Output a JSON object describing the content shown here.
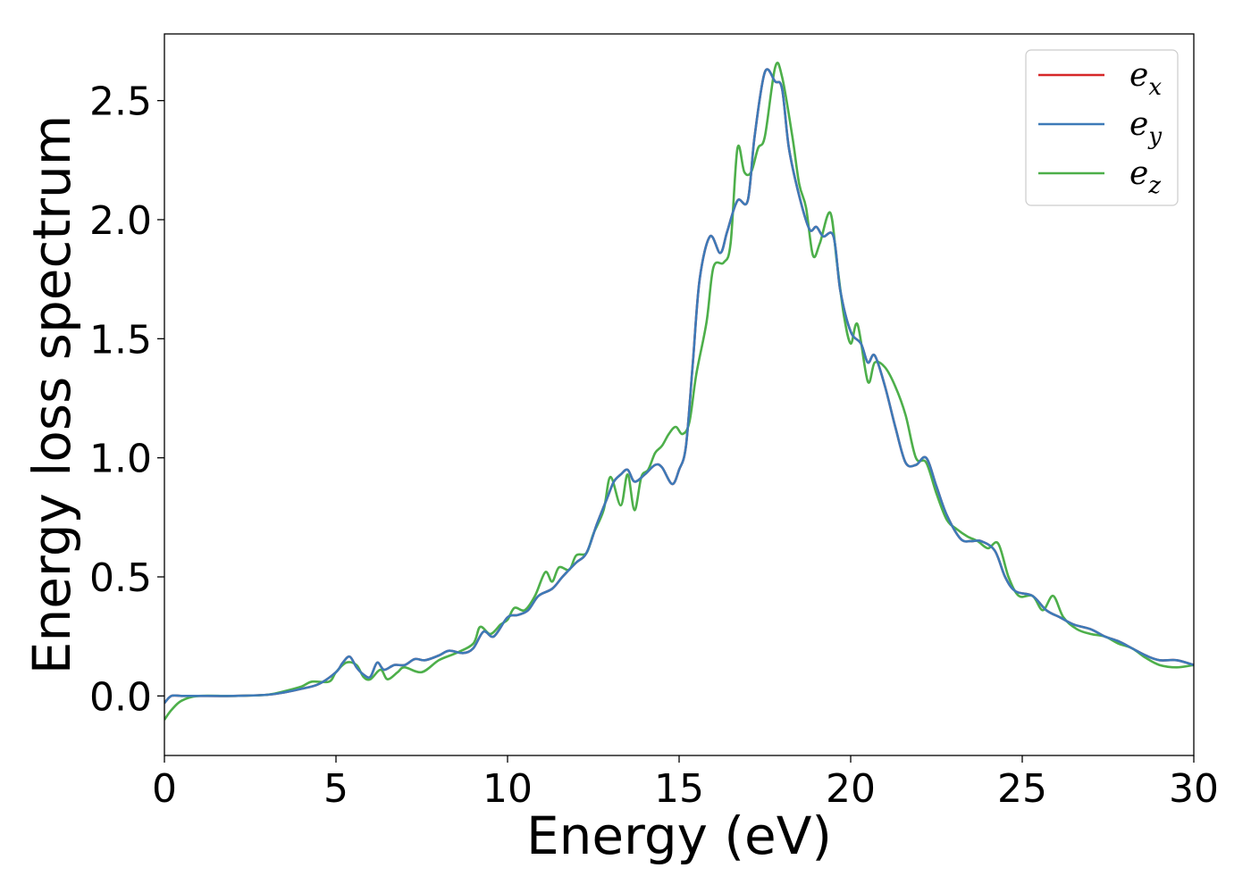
{
  "chart_data": {
    "type": "line",
    "xlabel": "Energy (eV)",
    "ylabel": "Energy loss spectrum",
    "xlim": [
      0,
      30
    ],
    "ylim": [
      -0.25,
      2.78
    ],
    "xticks": [
      0,
      5,
      10,
      15,
      20,
      25,
      30
    ],
    "xtick_labels": [
      "0",
      "5",
      "10",
      "15",
      "20",
      "25",
      "30"
    ],
    "yticks": [
      0.0,
      0.5,
      1.0,
      1.5,
      2.0,
      2.5
    ],
    "ytick_labels": [
      "0.0",
      "0.5",
      "1.0",
      "1.5",
      "2.0",
      "2.5"
    ],
    "grid": false,
    "legend_position": "top-right",
    "series": [
      {
        "name": "ex",
        "label_base": "e",
        "label_sub": "x",
        "color": "#d62728",
        "points": [
          [
            0,
            -0.03
          ],
          [
            0.2,
            0.0
          ],
          [
            0.5,
            0.0
          ],
          [
            1,
            0.0
          ],
          [
            2,
            0.0
          ],
          [
            3,
            0.005
          ],
          [
            3.5,
            0.015
          ],
          [
            4,
            0.03
          ],
          [
            4.5,
            0.05
          ],
          [
            5,
            0.1
          ],
          [
            5.2,
            0.14
          ],
          [
            5.4,
            0.165
          ],
          [
            5.6,
            0.12
          ],
          [
            5.8,
            0.09
          ],
          [
            6,
            0.08
          ],
          [
            6.2,
            0.14
          ],
          [
            6.4,
            0.11
          ],
          [
            6.7,
            0.13
          ],
          [
            7,
            0.13
          ],
          [
            7.3,
            0.155
          ],
          [
            7.6,
            0.15
          ],
          [
            8,
            0.17
          ],
          [
            8.3,
            0.19
          ],
          [
            8.7,
            0.18
          ],
          [
            9,
            0.2
          ],
          [
            9.3,
            0.27
          ],
          [
            9.6,
            0.25
          ],
          [
            10,
            0.33
          ],
          [
            10.3,
            0.34
          ],
          [
            10.6,
            0.36
          ],
          [
            10.9,
            0.42
          ],
          [
            11.3,
            0.45
          ],
          [
            11.6,
            0.5
          ],
          [
            12,
            0.56
          ],
          [
            12.3,
            0.6
          ],
          [
            12.6,
            0.72
          ],
          [
            12.9,
            0.83
          ],
          [
            13.1,
            0.9
          ],
          [
            13.3,
            0.93
          ],
          [
            13.5,
            0.95
          ],
          [
            13.7,
            0.9
          ],
          [
            14,
            0.93
          ],
          [
            14.3,
            0.97
          ],
          [
            14.5,
            0.96
          ],
          [
            14.8,
            0.89
          ],
          [
            15,
            0.95
          ],
          [
            15.2,
            1.05
          ],
          [
            15.4,
            1.4
          ],
          [
            15.6,
            1.75
          ],
          [
            15.9,
            1.93
          ],
          [
            16.2,
            1.86
          ],
          [
            16.4,
            1.95
          ],
          [
            16.7,
            2.08
          ],
          [
            17,
            2.08
          ],
          [
            17.2,
            2.35
          ],
          [
            17.5,
            2.62
          ],
          [
            17.8,
            2.58
          ],
          [
            18,
            2.55
          ],
          [
            18.2,
            2.3
          ],
          [
            18.5,
            2.1
          ],
          [
            18.8,
            1.96
          ],
          [
            19,
            1.97
          ],
          [
            19.2,
            1.93
          ],
          [
            19.5,
            1.93
          ],
          [
            19.7,
            1.7
          ],
          [
            20,
            1.53
          ],
          [
            20.3,
            1.48
          ],
          [
            20.5,
            1.4
          ],
          [
            20.7,
            1.43
          ],
          [
            21,
            1.3
          ],
          [
            21.3,
            1.13
          ],
          [
            21.6,
            0.98
          ],
          [
            21.9,
            0.97
          ],
          [
            22.2,
            1.0
          ],
          [
            22.5,
            0.88
          ],
          [
            22.8,
            0.76
          ],
          [
            23.2,
            0.66
          ],
          [
            23.5,
            0.65
          ],
          [
            23.8,
            0.65
          ],
          [
            24.2,
            0.61
          ],
          [
            24.5,
            0.5
          ],
          [
            24.8,
            0.44
          ],
          [
            25.3,
            0.42
          ],
          [
            25.7,
            0.36
          ],
          [
            26.1,
            0.33
          ],
          [
            26.5,
            0.3
          ],
          [
            27,
            0.28
          ],
          [
            27.4,
            0.25
          ],
          [
            27.8,
            0.23
          ],
          [
            28.2,
            0.2
          ],
          [
            28.6,
            0.17
          ],
          [
            29,
            0.15
          ],
          [
            29.5,
            0.15
          ],
          [
            30,
            0.13
          ]
        ]
      },
      {
        "name": "ey",
        "label_base": "e",
        "label_sub": "y",
        "color": "#3d7ab8",
        "points": [
          [
            0,
            -0.03
          ],
          [
            0.2,
            0.0
          ],
          [
            0.5,
            0.0
          ],
          [
            1,
            0.0
          ],
          [
            2,
            0.0
          ],
          [
            3,
            0.005
          ],
          [
            3.5,
            0.015
          ],
          [
            4,
            0.03
          ],
          [
            4.5,
            0.05
          ],
          [
            5,
            0.1
          ],
          [
            5.2,
            0.14
          ],
          [
            5.4,
            0.165
          ],
          [
            5.6,
            0.12
          ],
          [
            5.8,
            0.09
          ],
          [
            6,
            0.08
          ],
          [
            6.2,
            0.14
          ],
          [
            6.4,
            0.11
          ],
          [
            6.7,
            0.13
          ],
          [
            7,
            0.13
          ],
          [
            7.3,
            0.155
          ],
          [
            7.6,
            0.15
          ],
          [
            8,
            0.17
          ],
          [
            8.3,
            0.19
          ],
          [
            8.7,
            0.18
          ],
          [
            9,
            0.2
          ],
          [
            9.3,
            0.27
          ],
          [
            9.6,
            0.25
          ],
          [
            10,
            0.33
          ],
          [
            10.3,
            0.34
          ],
          [
            10.6,
            0.36
          ],
          [
            10.9,
            0.42
          ],
          [
            11.3,
            0.45
          ],
          [
            11.6,
            0.5
          ],
          [
            12,
            0.56
          ],
          [
            12.3,
            0.6
          ],
          [
            12.6,
            0.72
          ],
          [
            12.9,
            0.83
          ],
          [
            13.1,
            0.9
          ],
          [
            13.3,
            0.93
          ],
          [
            13.5,
            0.95
          ],
          [
            13.7,
            0.9
          ],
          [
            14,
            0.93
          ],
          [
            14.3,
            0.97
          ],
          [
            14.5,
            0.96
          ],
          [
            14.8,
            0.89
          ],
          [
            15,
            0.95
          ],
          [
            15.2,
            1.05
          ],
          [
            15.4,
            1.4
          ],
          [
            15.6,
            1.75
          ],
          [
            15.9,
            1.93
          ],
          [
            16.2,
            1.86
          ],
          [
            16.4,
            1.95
          ],
          [
            16.7,
            2.08
          ],
          [
            17,
            2.08
          ],
          [
            17.2,
            2.35
          ],
          [
            17.5,
            2.62
          ],
          [
            17.8,
            2.58
          ],
          [
            18,
            2.55
          ],
          [
            18.2,
            2.3
          ],
          [
            18.5,
            2.1
          ],
          [
            18.8,
            1.96
          ],
          [
            19,
            1.97
          ],
          [
            19.2,
            1.93
          ],
          [
            19.5,
            1.93
          ],
          [
            19.7,
            1.7
          ],
          [
            20,
            1.53
          ],
          [
            20.3,
            1.48
          ],
          [
            20.5,
            1.4
          ],
          [
            20.7,
            1.43
          ],
          [
            21,
            1.3
          ],
          [
            21.3,
            1.13
          ],
          [
            21.6,
            0.98
          ],
          [
            21.9,
            0.97
          ],
          [
            22.2,
            1.0
          ],
          [
            22.5,
            0.88
          ],
          [
            22.8,
            0.76
          ],
          [
            23.2,
            0.66
          ],
          [
            23.5,
            0.65
          ],
          [
            23.8,
            0.65
          ],
          [
            24.2,
            0.61
          ],
          [
            24.5,
            0.5
          ],
          [
            24.8,
            0.44
          ],
          [
            25.3,
            0.42
          ],
          [
            25.7,
            0.36
          ],
          [
            26.1,
            0.33
          ],
          [
            26.5,
            0.3
          ],
          [
            27,
            0.28
          ],
          [
            27.4,
            0.25
          ],
          [
            27.8,
            0.23
          ],
          [
            28.2,
            0.2
          ],
          [
            28.6,
            0.17
          ],
          [
            29,
            0.15
          ],
          [
            29.5,
            0.15
          ],
          [
            30,
            0.13
          ]
        ]
      },
      {
        "name": "ez",
        "label_base": "e",
        "label_sub": "z",
        "color": "#4daf4a",
        "points": [
          [
            0,
            -0.1
          ],
          [
            0.2,
            -0.06
          ],
          [
            0.5,
            -0.02
          ],
          [
            1,
            0.0
          ],
          [
            2,
            0.0
          ],
          [
            3,
            0.005
          ],
          [
            3.5,
            0.02
          ],
          [
            4,
            0.04
          ],
          [
            4.3,
            0.06
          ],
          [
            4.8,
            0.06
          ],
          [
            5,
            0.1
          ],
          [
            5.3,
            0.14
          ],
          [
            5.6,
            0.13
          ],
          [
            5.8,
            0.08
          ],
          [
            6,
            0.07
          ],
          [
            6.3,
            0.11
          ],
          [
            6.5,
            0.07
          ],
          [
            6.8,
            0.1
          ],
          [
            7,
            0.12
          ],
          [
            7.5,
            0.1
          ],
          [
            8,
            0.15
          ],
          [
            8.5,
            0.18
          ],
          [
            9,
            0.22
          ],
          [
            9.2,
            0.29
          ],
          [
            9.5,
            0.26
          ],
          [
            9.8,
            0.3
          ],
          [
            10,
            0.32
          ],
          [
            10.2,
            0.37
          ],
          [
            10.5,
            0.36
          ],
          [
            10.8,
            0.42
          ],
          [
            11.1,
            0.52
          ],
          [
            11.3,
            0.48
          ],
          [
            11.5,
            0.54
          ],
          [
            11.8,
            0.53
          ],
          [
            12,
            0.59
          ],
          [
            12.3,
            0.6
          ],
          [
            12.5,
            0.68
          ],
          [
            12.8,
            0.78
          ],
          [
            13,
            0.92
          ],
          [
            13.3,
            0.8
          ],
          [
            13.5,
            0.93
          ],
          [
            13.7,
            0.78
          ],
          [
            13.9,
            0.92
          ],
          [
            14.1,
            0.95
          ],
          [
            14.3,
            1.02
          ],
          [
            14.5,
            1.05
          ],
          [
            14.7,
            1.1
          ],
          [
            14.9,
            1.13
          ],
          [
            15.1,
            1.1
          ],
          [
            15.3,
            1.15
          ],
          [
            15.5,
            1.35
          ],
          [
            15.8,
            1.57
          ],
          [
            16,
            1.8
          ],
          [
            16.3,
            1.82
          ],
          [
            16.5,
            1.9
          ],
          [
            16.7,
            2.3
          ],
          [
            16.9,
            2.2
          ],
          [
            17.1,
            2.2
          ],
          [
            17.3,
            2.3
          ],
          [
            17.5,
            2.35
          ],
          [
            17.8,
            2.64
          ],
          [
            18,
            2.6
          ],
          [
            18.3,
            2.35
          ],
          [
            18.5,
            2.15
          ],
          [
            18.7,
            2.05
          ],
          [
            18.9,
            1.85
          ],
          [
            19.1,
            1.9
          ],
          [
            19.4,
            2.03
          ],
          [
            19.6,
            1.82
          ],
          [
            19.8,
            1.6
          ],
          [
            20,
            1.48
          ],
          [
            20.2,
            1.56
          ],
          [
            20.5,
            1.32
          ],
          [
            20.7,
            1.4
          ],
          [
            21,
            1.38
          ],
          [
            21.3,
            1.3
          ],
          [
            21.6,
            1.18
          ],
          [
            21.9,
            1.0
          ],
          [
            22.2,
            0.98
          ],
          [
            22.5,
            0.85
          ],
          [
            22.8,
            0.74
          ],
          [
            23.1,
            0.7
          ],
          [
            23.4,
            0.67
          ],
          [
            23.7,
            0.65
          ],
          [
            24,
            0.62
          ],
          [
            24.3,
            0.64
          ],
          [
            24.6,
            0.5
          ],
          [
            24.9,
            0.42
          ],
          [
            25.3,
            0.42
          ],
          [
            25.6,
            0.36
          ],
          [
            25.9,
            0.42
          ],
          [
            26.2,
            0.33
          ],
          [
            26.6,
            0.28
          ],
          [
            27,
            0.26
          ],
          [
            27.4,
            0.25
          ],
          [
            27.8,
            0.22
          ],
          [
            28.2,
            0.2
          ],
          [
            28.6,
            0.16
          ],
          [
            29,
            0.13
          ],
          [
            29.5,
            0.12
          ],
          [
            30,
            0.13
          ]
        ]
      }
    ]
  }
}
